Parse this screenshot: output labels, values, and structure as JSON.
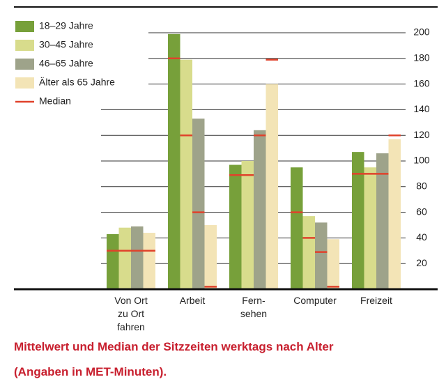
{
  "chart_data": {
    "type": "bar",
    "title": "Mittelwert und Median der Sitzzeiten werktags nach Alter",
    "subtitle": "(Angaben in MET-Minuten).",
    "categories": [
      "Von Ort\nzu Ort\nfahren",
      "Arbeit",
      "Fern-\nsehen",
      "Computer",
      "Freizeit"
    ],
    "series": [
      {
        "name": "18–29 Jahre",
        "color": "#77a03a",
        "values": [
          43,
          199,
          97,
          95,
          107
        ],
        "medians": [
          30,
          180,
          89,
          60,
          90
        ]
      },
      {
        "name": "30–45 Jahre",
        "color": "#d8dc8c",
        "values": [
          48,
          179,
          100,
          57,
          95
        ],
        "medians": [
          30,
          120,
          89,
          40,
          90
        ]
      },
      {
        "name": "46–65 Jahre",
        "color": "#9ea38a",
        "values": [
          49,
          133,
          124,
          52,
          106
        ],
        "medians": [
          30,
          60,
          120,
          29,
          90
        ]
      },
      {
        "name": "Älter als 65 Jahre",
        "color": "#f3e4b6",
        "values": [
          44,
          50,
          160,
          39,
          117
        ],
        "medians": [
          30,
          2,
          179,
          2,
          120
        ]
      }
    ],
    "median_name": "Median",
    "median_color": "#e0422b",
    "ylim": [
      0,
      200
    ],
    "yticks": [
      20,
      40,
      60,
      80,
      100,
      120,
      140,
      160,
      180,
      200
    ],
    "grid": true
  }
}
